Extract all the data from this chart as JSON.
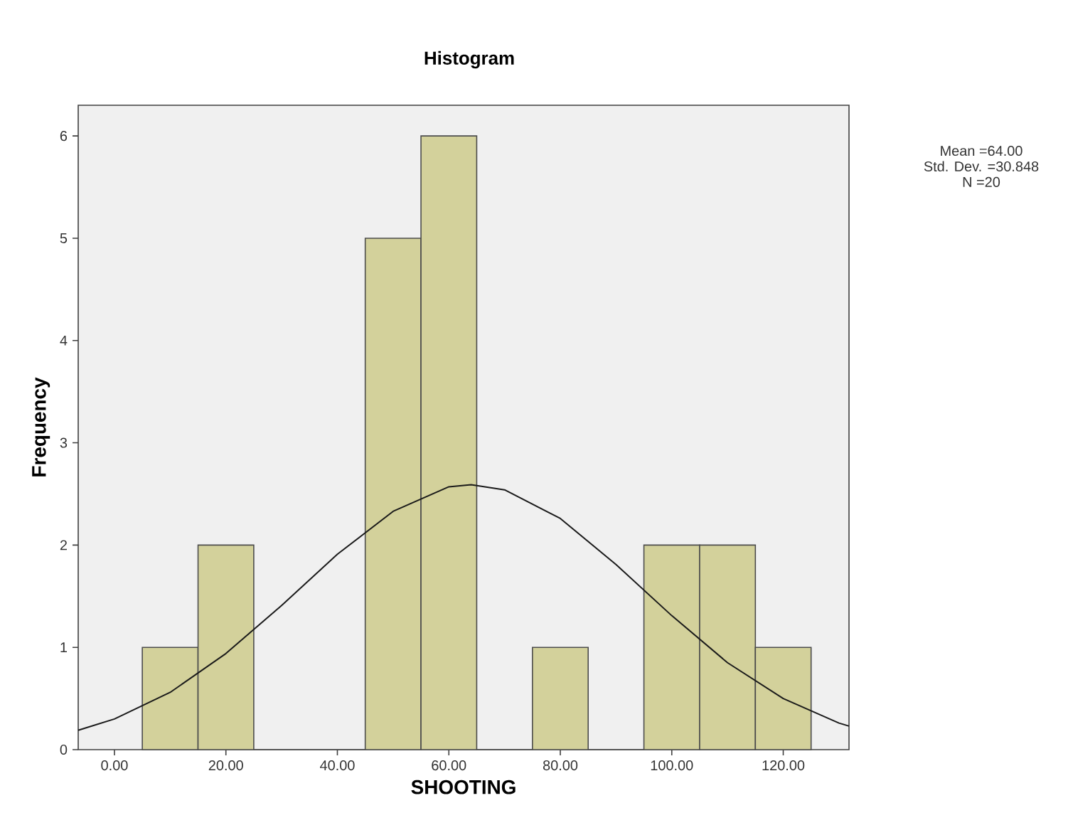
{
  "chart_data": {
    "type": "histogram",
    "title": "Histogram",
    "xlabel": "SHOOTING",
    "ylabel": "Frequency",
    "bins": [
      5,
      15,
      25,
      35,
      45,
      55,
      65,
      75,
      85,
      95,
      105,
      115,
      125
    ],
    "values": [
      1,
      2,
      0,
      0,
      5,
      6,
      0,
      1,
      0,
      2,
      2,
      1
    ],
    "color": "#d3d19b",
    "series": [
      {
        "type": "line",
        "color": "#1a1a1a",
        "x": [
          -6.5,
          0,
          10,
          20,
          30,
          40,
          50,
          60,
          64,
          70,
          80,
          90,
          100,
          110,
          120,
          130,
          131.8
        ],
        "values": [
          0.19,
          0.3,
          0.56,
          0.94,
          1.41,
          1.91,
          2.33,
          2.57,
          2.59,
          2.54,
          2.26,
          1.81,
          1.31,
          0.85,
          0.5,
          0.26,
          0.23
        ]
      }
    ],
    "xlim": [
      -6.5,
      131.8
    ],
    "ylim": [
      0,
      6.3
    ],
    "xticks": [
      {
        "value": 0,
        "label": "0.00"
      },
      {
        "value": 20,
        "label": "20.00"
      },
      {
        "value": 40,
        "label": "40.00"
      },
      {
        "value": 60,
        "label": "60.00"
      },
      {
        "value": 80,
        "label": "80.00"
      },
      {
        "value": 100,
        "label": "100.00"
      },
      {
        "value": 120,
        "label": "120.00"
      }
    ],
    "yticks": [
      0,
      1,
      2,
      3,
      4,
      5,
      6
    ],
    "annotations": [
      "Mean =64.00",
      "Std. Dev. =30.848",
      "N =20"
    ]
  }
}
